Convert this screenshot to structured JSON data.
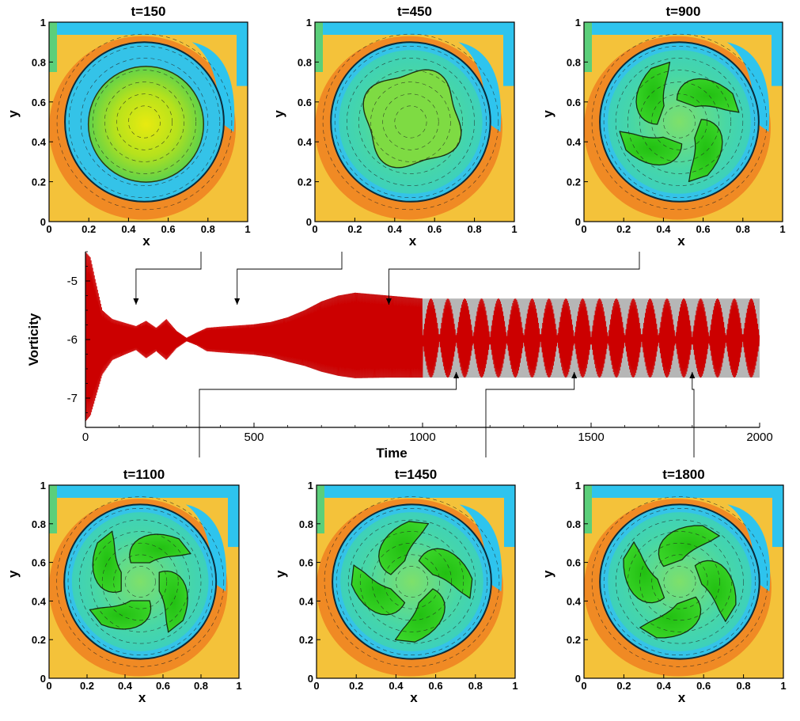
{
  "panels": [
    {
      "title": "t=150",
      "t": 150,
      "state": "single"
    },
    {
      "title": "t=450",
      "t": 450,
      "state": "square"
    },
    {
      "title": "t=900",
      "t": 900,
      "state": "quad",
      "rot": 20
    },
    {
      "title": "t=1100",
      "t": 1100,
      "state": "quad",
      "rot": 0
    },
    {
      "title": "t=1450",
      "t": 1450,
      "state": "quad",
      "rot": 45
    },
    {
      "title": "t=1800",
      "t": 1800,
      "state": "quad",
      "rot": 70
    }
  ],
  "panel_axes": {
    "xlabel": "x",
    "ylabel": "y",
    "ticks": [
      "0",
      "0.2",
      "0.4",
      "0.6",
      "0.8",
      "1"
    ]
  },
  "colors": {
    "wall_cyan": "#2ec4ee",
    "ring_orange": "#f08a24",
    "outer_yellow": "#f4c23a",
    "ring_blue": "#34c3e8",
    "core_green": "#2fce25",
    "core_teal": "#3fd7ac",
    "core_yellow": "#d6e414",
    "series": "#cc0000",
    "series_shade": "#9e9e9e"
  },
  "chart_data": {
    "type": "line",
    "title": "",
    "xlabel": "Time",
    "ylabel": "Vorticity",
    "xlim": [
      0,
      2000
    ],
    "ylim": [
      -7.5,
      -4.5
    ],
    "xticks": [
      "0",
      "500",
      "1000",
      "1500",
      "2000"
    ],
    "yticks": [
      "-5",
      "-6",
      "-7"
    ],
    "series": [
      {
        "name": "Vorticity",
        "mean": -6.0,
        "envelope": {
          "time": [
            0,
            15,
            30,
            50,
            80,
            120,
            150,
            180,
            210,
            240,
            270,
            300,
            330,
            360,
            400,
            450,
            500,
            550,
            600,
            650,
            700,
            750,
            800,
            900,
            1000,
            1200,
            1500,
            2000
          ],
          "upper": [
            -4.5,
            -4.6,
            -5.0,
            -5.5,
            -5.65,
            -5.72,
            -5.77,
            -5.68,
            -5.8,
            -5.65,
            -5.85,
            -5.97,
            -5.88,
            -5.8,
            -5.78,
            -5.76,
            -5.74,
            -5.7,
            -5.62,
            -5.5,
            -5.35,
            -5.25,
            -5.2,
            -5.25,
            -5.3,
            -5.3,
            -5.3,
            -5.3
          ],
          "lower": [
            -7.4,
            -7.3,
            -7.0,
            -6.6,
            -6.35,
            -6.25,
            -6.18,
            -6.32,
            -6.2,
            -6.35,
            -6.15,
            -6.03,
            -6.1,
            -6.2,
            -6.22,
            -6.24,
            -6.26,
            -6.3,
            -6.38,
            -6.45,
            -6.55,
            -6.62,
            -6.66,
            -6.65,
            -6.65,
            -6.65,
            -6.65,
            -6.65
          ]
        },
        "beat_start": 1000,
        "beat_period": 50
      }
    ],
    "markers": [
      {
        "label": "t=150",
        "t": 150
      },
      {
        "label": "t=450",
        "t": 450
      },
      {
        "label": "t=900",
        "t": 900
      },
      {
        "label": "t=1100",
        "t": 1100
      },
      {
        "label": "t=1450",
        "t": 1450
      },
      {
        "label": "t=1800",
        "t": 1800
      }
    ]
  }
}
